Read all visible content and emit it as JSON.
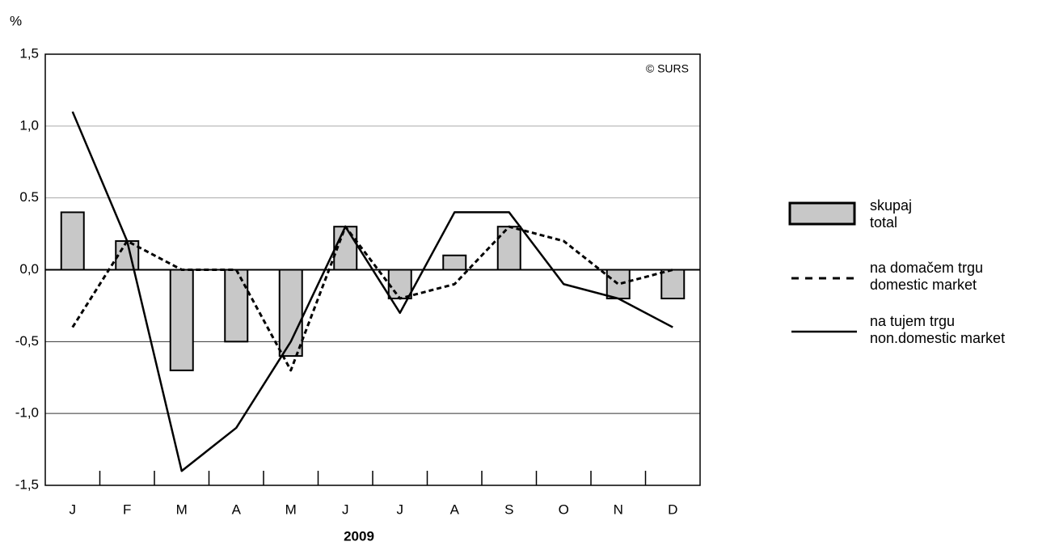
{
  "chart_data": {
    "type": "bar",
    "y_label": "%",
    "x_label": "2009",
    "annotation": "© SURS",
    "categories": [
      "J",
      "F",
      "M",
      "A",
      "M",
      "J",
      "J",
      "A",
      "S",
      "O",
      "N",
      "D"
    ],
    "series": [
      {
        "name": "skupaj\ntotal",
        "type": "bar",
        "color": "#c8c8c8",
        "values": [
          0.4,
          0.2,
          -0.7,
          -0.5,
          -0.6,
          0.3,
          -0.2,
          0.1,
          0.3,
          0,
          -0.2,
          -0.2
        ]
      },
      {
        "name": "na domačem trgu\ndomestic market",
        "type": "line",
        "dashed": true,
        "color": "#000000",
        "values": [
          -0.4,
          0.2,
          0.0,
          0.0,
          -0.7,
          0.3,
          -0.2,
          -0.1,
          0.3,
          0.2,
          -0.1,
          0.0
        ]
      },
      {
        "name": "na tujem trgu\nnon.domestic market",
        "type": "line",
        "dashed": false,
        "color": "#000000",
        "values": [
          1.1,
          0.2,
          -1.4,
          -1.1,
          -0.5,
          0.3,
          -0.3,
          0.4,
          0.4,
          -0.1,
          -0.2,
          -0.4
        ]
      }
    ],
    "ylim": [
      -1.5,
      1.5
    ],
    "yticks": [
      {
        "value": -1.5,
        "label": "-1,5"
      },
      {
        "value": -1.0,
        "label": "-1,0"
      },
      {
        "value": -0.5,
        "label": "-0,5"
      },
      {
        "value": 0,
        "label": "0,0"
      },
      {
        "value": 0.5,
        "label": "0.5"
      },
      {
        "value": 1.0,
        "label": "1,0"
      },
      {
        "value": 1.5,
        "label": "1,5"
      }
    ],
    "grid": true
  }
}
